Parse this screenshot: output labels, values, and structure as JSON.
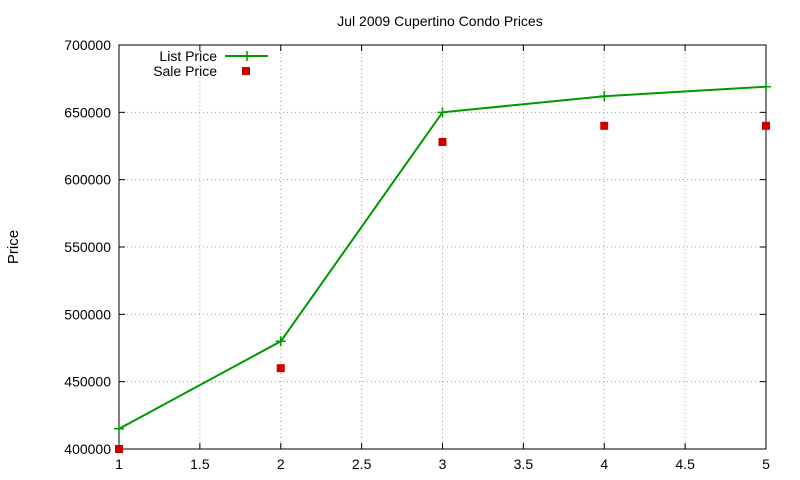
{
  "chart_data": {
    "type": "line",
    "title": "Jul 2009 Cupertino Condo Prices",
    "xlabel": "",
    "ylabel": "Price",
    "xlim": [
      1,
      5
    ],
    "ylim": [
      400000,
      700000
    ],
    "x_ticks": [
      "1",
      "1.5",
      "2",
      "2.5",
      "3",
      "3.5",
      "4",
      "4.5",
      "5"
    ],
    "y_ticks": [
      "400000",
      "450000",
      "500000",
      "550000",
      "600000",
      "650000",
      "700000"
    ],
    "grid": true,
    "legend_position": "top-left",
    "series": [
      {
        "name": "List Price",
        "style": "line-with-plus-markers",
        "color": "#009900",
        "x": [
          1,
          2,
          3,
          4,
          5
        ],
        "values": [
          415000,
          480000,
          650000,
          662000,
          669000
        ]
      },
      {
        "name": "Sale Price",
        "style": "square-markers",
        "color": "#cc0000",
        "x": [
          1,
          2,
          3,
          4,
          5
        ],
        "values": [
          400000,
          460000,
          628000,
          640000,
          640000
        ]
      }
    ]
  }
}
